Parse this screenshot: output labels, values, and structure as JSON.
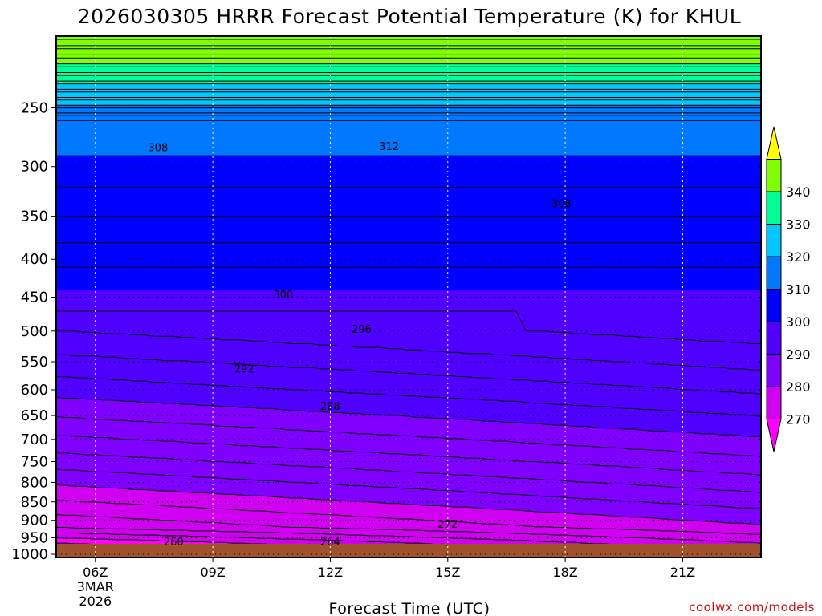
{
  "chart_data": {
    "type": "contour",
    "title": "2026030305 HRRR Forecast Potential Temperature (K) for KHUL",
    "xlabel": "Forecast Time (UTC)",
    "credit": "coolwx.com/models",
    "x_ticks": [
      {
        "hour": 6,
        "label": "06Z"
      },
      {
        "hour": 9,
        "label": "09Z"
      },
      {
        "hour": 12,
        "label": "12Z"
      },
      {
        "hour": 15,
        "label": "15Z"
      },
      {
        "hour": 18,
        "label": "18Z"
      },
      {
        "hour": 21,
        "label": "21Z"
      }
    ],
    "x_date_lines": [
      "3MAR",
      "2026"
    ],
    "xlim": [
      5,
      23
    ],
    "y_ticks": [
      250,
      300,
      350,
      400,
      450,
      500,
      550,
      600,
      650,
      700,
      750,
      800,
      850,
      900,
      950,
      1000
    ],
    "ylim": [
      1010,
      200
    ],
    "y_scale": "log-pressure",
    "grid": "dotted",
    "colorbar": {
      "levels": [
        270,
        280,
        290,
        300,
        310,
        320,
        330,
        340
      ],
      "colors": [
        "#ff00ff",
        "#d000f0",
        "#8000ff",
        "#5000ff",
        "#0000ff",
        "#0078ff",
        "#00c8ff",
        "#00ff96",
        "#80ff00",
        "#ffff00"
      ],
      "labels": [
        "270",
        "280",
        "290",
        "300",
        "310",
        "320",
        "330",
        "340"
      ]
    },
    "contour_labels": [
      {
        "value": 312,
        "hour": 13.5,
        "p": 282
      },
      {
        "value": 308,
        "hour": 7.6,
        "p": 283
      },
      {
        "value": 308,
        "hour": 17.9,
        "p": 337
      },
      {
        "value": 300,
        "hour": 10.8,
        "p": 447
      },
      {
        "value": 296,
        "hour": 12.8,
        "p": 498
      },
      {
        "value": 292,
        "hour": 9.8,
        "p": 563
      },
      {
        "value": 288,
        "hour": 12,
        "p": 632
      },
      {
        "value": 272,
        "hour": 15,
        "p": 912
      },
      {
        "value": 264,
        "hour": 12,
        "p": 990
      },
      {
        "value": 260,
        "hour": 8.0,
        "p": 998
      }
    ],
    "surface_color": "#a0522d"
  }
}
